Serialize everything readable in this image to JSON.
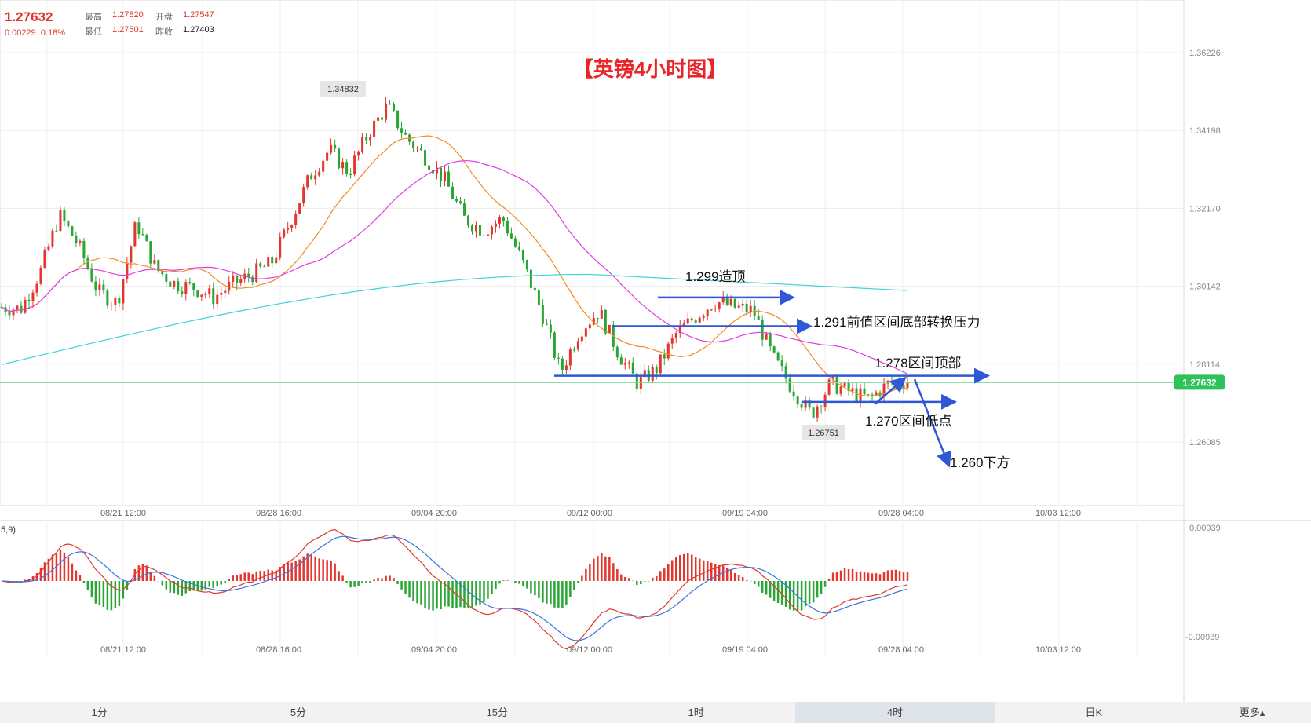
{
  "header": {
    "price": "1.27632",
    "change": "0.00229",
    "change_pct": "0.18%",
    "high_label": "最高",
    "high": "1.27820",
    "open_label": "开盘",
    "open": "1.27547",
    "low_label": "最低",
    "low": "1.27501",
    "prev_close_label": "昨收",
    "prev_close": "1.27403"
  },
  "chart_title": "【英镑4小时图】",
  "price_axis_ticks": [
    "1.36226",
    "1.34198",
    "1.32170",
    "1.30142",
    "1.28114",
    "1.26085"
  ],
  "price_axis_values": [
    1.36226,
    1.34198,
    1.3217,
    1.30142,
    1.28114,
    1.26085
  ],
  "current_price_tag": "1.27632",
  "time_axis_labels": [
    "08/21 12:00",
    "08/28 16:00",
    "09/04 20:00",
    "09/12 00:00",
    "09/19 04:00",
    "09/28 04:00",
    "10/03 12:00"
  ],
  "high_marker": "1.34832",
  "low_marker": "1.26751",
  "annotations": {
    "top": "1.299造顶",
    "resistance": "1.291前值区间底部转换压力",
    "range_top": "1.278区间顶部",
    "range_low": "1.270区间低点",
    "target": "1.260下方"
  },
  "macd": {
    "label": "5,9)",
    "axis_top": "0.00939",
    "axis_bottom": "-0.00939"
  },
  "timeframe_tabs": [
    "1分",
    "5分",
    "15分",
    "1时",
    "4时",
    "日K",
    "更多▴"
  ],
  "active_tab": "4时",
  "colors": {
    "up": "#e2362e",
    "down": "#2aa634",
    "ma_orange": "#f5891f",
    "ma_magenta": "#e23de0",
    "ma_cyan": "#3fd3dd",
    "arrow_blue": "#2f57d6",
    "current_price_bg": "#2ec25b"
  },
  "chart_data": {
    "type": "candlestick",
    "title": "【英镑4小时图】",
    "ylim": [
      1.2508,
      1.3663
    ],
    "key_levels": {
      "high": 1.34832,
      "low": 1.26751,
      "top": 1.299,
      "resistance": 1.291,
      "range_top": 1.278,
      "range_low": 1.27,
      "target": 1.26
    },
    "close_path": [
      1.296,
      1.2955,
      1.305,
      1.32,
      1.312,
      1.3,
      1.297,
      1.318,
      1.306,
      1.302,
      1.301,
      1.2985,
      1.302,
      1.3045,
      1.3075,
      1.3185,
      1.33,
      1.337,
      1.331,
      1.341,
      1.3483,
      1.34,
      1.335,
      1.329,
      1.319,
      1.316,
      1.319,
      1.308,
      1.295,
      1.279,
      1.29,
      1.295,
      1.284,
      1.276,
      1.28,
      1.289,
      1.2935,
      1.2975,
      1.296,
      1.295,
      1.283,
      1.275,
      1.268,
      1.276,
      1.274,
      1.272,
      1.276,
      1.277
    ]
  }
}
